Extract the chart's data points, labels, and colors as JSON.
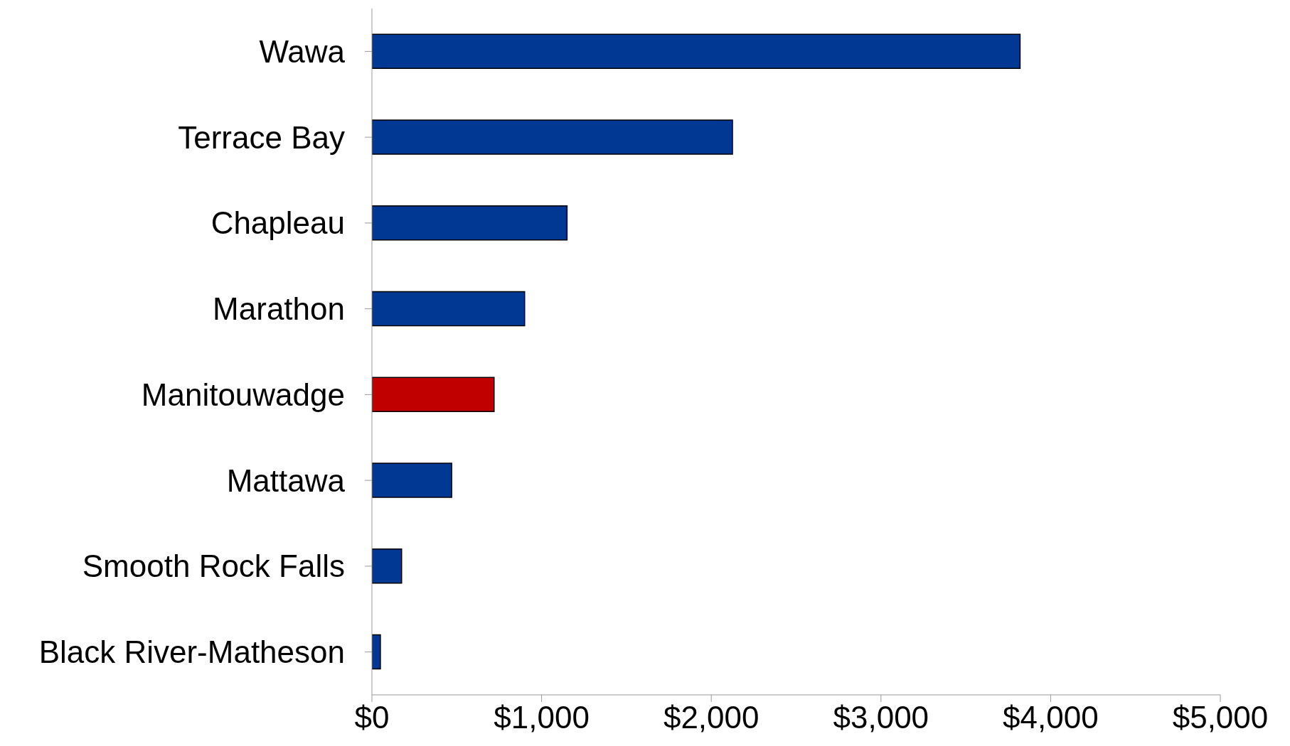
{
  "chart_data": {
    "type": "bar",
    "orientation": "horizontal",
    "categories": [
      "Wawa",
      "Terrace Bay",
      "Chapleau",
      "Marathon",
      "Manitouwadge",
      "Mattawa",
      "Smooth Rock Falls",
      "Black River-Matheson"
    ],
    "values": [
      3820,
      2125,
      1150,
      900,
      720,
      470,
      175,
      50
    ],
    "colors": [
      "#003893",
      "#003893",
      "#003893",
      "#003893",
      "#c00000",
      "#003893",
      "#003893",
      "#003893"
    ],
    "xlim": [
      0,
      5000
    ],
    "xticks": [
      {
        "value": 0,
        "label": "$0"
      },
      {
        "value": 1000,
        "label": "$1,000"
      },
      {
        "value": 2000,
        "label": "$2,000"
      },
      {
        "value": 3000,
        "label": "$3,000"
      },
      {
        "value": 4000,
        "label": "$4,000"
      },
      {
        "value": 5000,
        "label": "$5,000"
      }
    ],
    "grid": false
  }
}
